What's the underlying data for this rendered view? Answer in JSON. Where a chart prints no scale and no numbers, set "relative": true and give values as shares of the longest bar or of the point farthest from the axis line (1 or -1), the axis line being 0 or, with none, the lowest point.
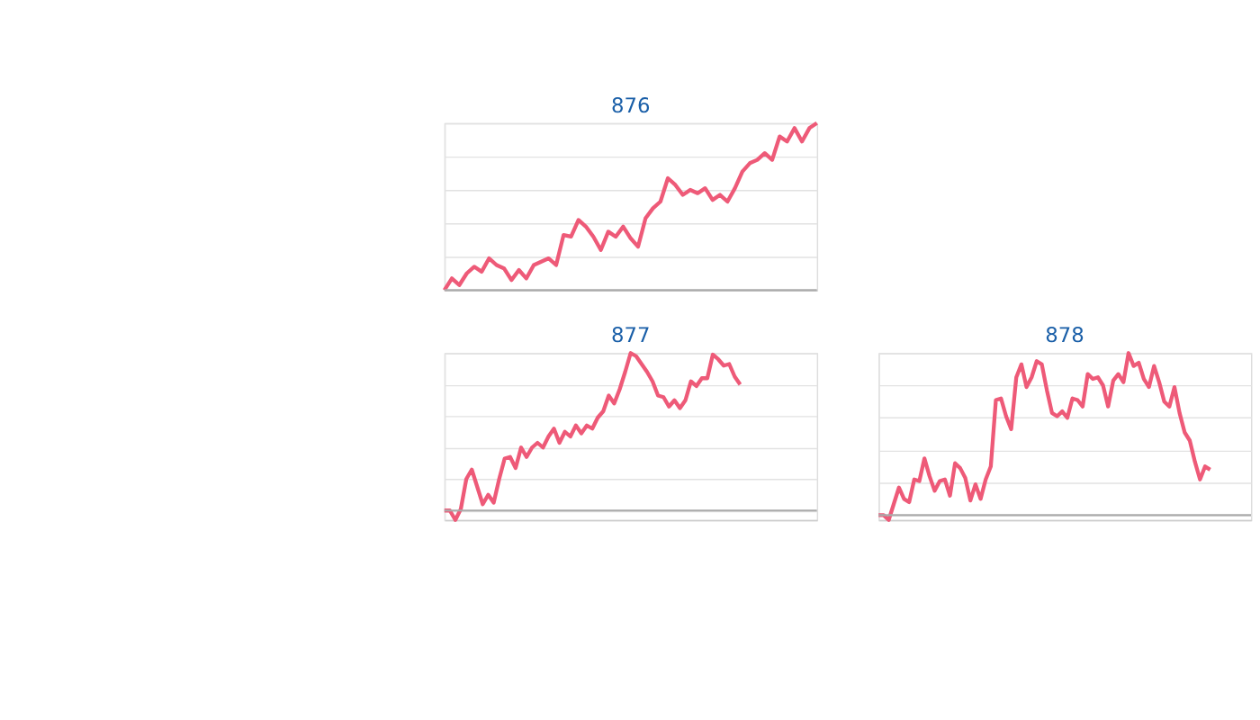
{
  "chart_data": [
    {
      "type": "line",
      "title": "876",
      "relative": true,
      "grid": "y",
      "marker": "none",
      "line_style": "solid",
      "tick_labels": false,
      "categories": [
        null,
        null,
        null,
        null,
        null,
        null,
        null,
        null,
        null,
        null,
        null,
        null,
        null,
        null,
        null,
        null,
        null,
        null,
        null,
        null,
        null,
        null,
        null,
        null,
        null,
        null,
        null,
        null,
        null,
        null,
        null,
        null,
        null,
        null,
        null,
        null,
        null,
        null,
        null,
        null,
        null,
        null,
        null,
        null,
        null,
        null,
        null,
        null,
        null,
        null,
        null
      ],
      "series": [
        {
          "color": "#ee5a78",
          "values": [
            0,
            0.07,
            0.03,
            0.1,
            0.14,
            0.11,
            0.19,
            0.15,
            0.13,
            0.06,
            0.12,
            0.07,
            0.15,
            0.17,
            0.19,
            0.15,
            0.33,
            0.32,
            0.42,
            0.38,
            0.32,
            0.24,
            0.35,
            0.32,
            0.38,
            0.31,
            0.26,
            0.43,
            0.49,
            0.53,
            0.67,
            0.63,
            0.57,
            0.6,
            0.58,
            0.61,
            0.54,
            0.57,
            0.53,
            0.61,
            0.71,
            0.76,
            0.78,
            0.82,
            0.78,
            0.92,
            0.89,
            0.97,
            0.89,
            0.97,
            1
          ]
        }
      ]
    },
    {
      "type": "line",
      "title": "877",
      "relative": true,
      "grid": "y",
      "marker": "none",
      "line_style": "solid",
      "tick_labels": false,
      "categories": [
        null,
        null,
        null,
        null,
        null,
        null,
        null,
        null,
        null,
        null,
        null,
        null,
        null,
        null,
        null,
        null,
        null,
        null,
        null,
        null,
        null,
        null,
        null,
        null,
        null,
        null,
        null,
        null,
        null,
        null,
        null,
        null,
        null,
        null,
        null,
        null,
        null,
        null,
        null,
        null,
        null,
        null,
        null,
        null,
        null,
        null,
        null,
        null,
        null,
        null,
        null,
        null,
        null,
        null,
        null,
        null,
        null,
        null,
        null,
        null,
        null,
        null,
        null,
        null,
        null,
        null,
        null,
        null,
        null
      ],
      "series": [
        {
          "color": "#ee5a78",
          "values": [
            0,
            0,
            -0.06,
            0.01,
            0.2,
            0.26,
            0.15,
            0.04,
            0.1,
            0.05,
            0.2,
            0.33,
            0.34,
            0.27,
            0.4,
            0.34,
            0.4,
            0.43,
            0.4,
            0.47,
            0.52,
            0.43,
            0.5,
            0.47,
            0.54,
            0.49,
            0.54,
            0.52,
            0.59,
            0.63,
            0.73,
            0.68,
            0.77,
            0.88,
            1,
            0.98,
            0.93,
            0.88,
            0.82,
            0.73,
            0.72,
            0.66,
            0.7,
            0.65,
            0.7,
            0.82,
            0.79,
            0.84,
            0.84,
            0.99,
            0.96,
            0.92,
            0.93,
            0.85,
            0.8,
            null,
            null,
            null,
            null,
            null,
            null,
            null,
            null,
            null,
            null,
            null,
            null,
            null,
            null
          ]
        }
      ]
    },
    {
      "type": "line",
      "title": "878",
      "relative": true,
      "grid": "y",
      "marker": "none",
      "line_style": "solid",
      "tick_labels": false,
      "categories": [
        null,
        null,
        null,
        null,
        null,
        null,
        null,
        null,
        null,
        null,
        null,
        null,
        null,
        null,
        null,
        null,
        null,
        null,
        null,
        null,
        null,
        null,
        null,
        null,
        null,
        null,
        null,
        null,
        null,
        null,
        null,
        null,
        null,
        null,
        null,
        null,
        null,
        null,
        null,
        null,
        null,
        null,
        null,
        null,
        null,
        null,
        null,
        null,
        null,
        null,
        null,
        null,
        null,
        null,
        null,
        null,
        null,
        null,
        null,
        null,
        null,
        null,
        null,
        null,
        null,
        null,
        null,
        null,
        null,
        null,
        null,
        null,
        null,
        null
      ],
      "series": [
        {
          "color": "#ee5a78",
          "values": [
            0,
            0,
            -0.03,
            0.07,
            0.17,
            0.1,
            0.08,
            0.22,
            0.21,
            0.35,
            0.24,
            0.15,
            0.21,
            0.22,
            0.12,
            0.32,
            0.29,
            0.23,
            0.09,
            0.19,
            0.1,
            0.22,
            0.3,
            0.71,
            0.72,
            0.61,
            0.53,
            0.85,
            0.93,
            0.79,
            0.85,
            0.95,
            0.93,
            0.77,
            0.63,
            0.61,
            0.64,
            0.6,
            0.72,
            0.71,
            0.67,
            0.87,
            0.84,
            0.85,
            0.8,
            0.67,
            0.83,
            0.87,
            0.82,
            1,
            0.92,
            0.94,
            0.84,
            0.79,
            0.92,
            0.82,
            0.7,
            0.67,
            0.79,
            0.63,
            0.51,
            0.46,
            0.33,
            0.22,
            0.3,
            0.28,
            null,
            null,
            null,
            null,
            null,
            null,
            null,
            null
          ]
        }
      ]
    }
  ]
}
